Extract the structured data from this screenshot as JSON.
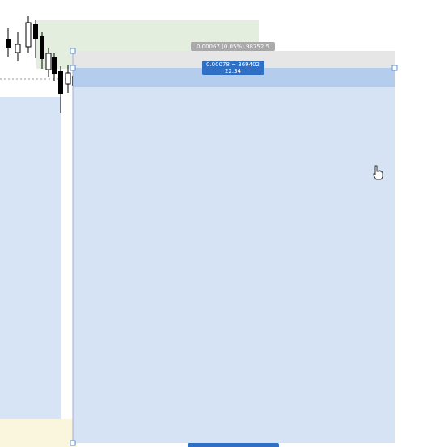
{
  "labels": {
    "target": "0.00067 (0.05%) 98752.5",
    "entry": "0.00078 ~ 369402",
    "ratio": "22.34"
  }
}
